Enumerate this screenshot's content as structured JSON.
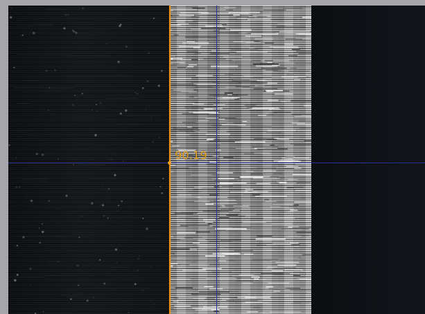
{
  "viewer": {
    "measurement": "90.19"
  },
  "colors": {
    "edge_line": "#e8931a",
    "crosshair": "#2a2f9a",
    "measurement_text": "#e6a21f",
    "background_frame": "#a6a6aa",
    "dark_field": "#111317"
  },
  "icons": {
    "edge_marker": "edge-marker-dot"
  }
}
